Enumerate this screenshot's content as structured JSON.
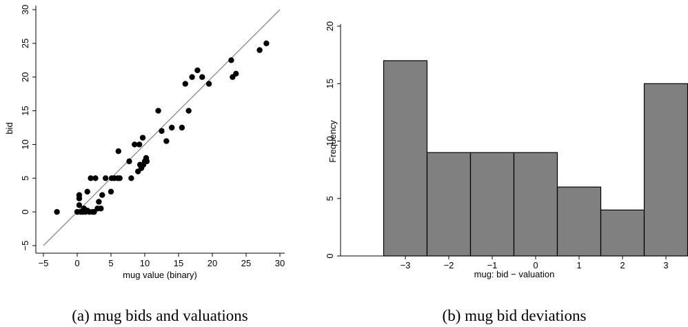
{
  "chart_data": [
    {
      "type": "scatter",
      "caption": "(a) mug bids and valuations",
      "xlabel": "mug value (binary)",
      "ylabel": "bid",
      "xlim": [
        -5,
        30
      ],
      "ylim": [
        -5,
        30
      ],
      "xticks": [
        -5,
        0,
        5,
        10,
        15,
        20,
        25,
        30
      ],
      "yticks": [
        -5,
        0,
        5,
        10,
        15,
        20,
        25,
        30
      ],
      "reference_line": {
        "from": [
          -5,
          -5
        ],
        "to": [
          30,
          30
        ],
        "color": "#8a8a8a"
      },
      "points": [
        [
          -3,
          0
        ],
        [
          0,
          0
        ],
        [
          0.3,
          1
        ],
        [
          0.3,
          2
        ],
        [
          0.3,
          2.5
        ],
        [
          0.5,
          0
        ],
        [
          0.8,
          0
        ],
        [
          1,
          0.5
        ],
        [
          1.2,
          0
        ],
        [
          1.5,
          0.2
        ],
        [
          1.5,
          3
        ],
        [
          1.8,
          0
        ],
        [
          2,
          5
        ],
        [
          2.3,
          0
        ],
        [
          2.5,
          0
        ],
        [
          2.7,
          5
        ],
        [
          3,
          0.5
        ],
        [
          3.2,
          1.5
        ],
        [
          3.5,
          0.5
        ],
        [
          3.7,
          2.5
        ],
        [
          4.2,
          5
        ],
        [
          5,
          3
        ],
        [
          5.1,
          5
        ],
        [
          5.5,
          5
        ],
        [
          6,
          5
        ],
        [
          6.1,
          9
        ],
        [
          6.3,
          5
        ],
        [
          7.7,
          7.5
        ],
        [
          8,
          5
        ],
        [
          8.5,
          10
        ],
        [
          9,
          6
        ],
        [
          9.2,
          10
        ],
        [
          9.3,
          7
        ],
        [
          9.5,
          6.5
        ],
        [
          9.7,
          11
        ],
        [
          9.8,
          7
        ],
        [
          10,
          7.5
        ],
        [
          10.2,
          8
        ],
        [
          10.3,
          7.5
        ],
        [
          12,
          15
        ],
        [
          12.5,
          12
        ],
        [
          13.2,
          10.5
        ],
        [
          14,
          12.5
        ],
        [
          15.5,
          12.5
        ],
        [
          16,
          19
        ],
        [
          16.5,
          15
        ],
        [
          17,
          20
        ],
        [
          17.8,
          21
        ],
        [
          18.5,
          20
        ],
        [
          19.5,
          19
        ],
        [
          22.8,
          22.5
        ],
        [
          23,
          20
        ],
        [
          23.5,
          20.5
        ],
        [
          27,
          24
        ],
        [
          28,
          25
        ]
      ],
      "point_color": "#000000"
    },
    {
      "type": "bar",
      "caption": "(b) mug bid deviations",
      "xlabel": "mug: bid − valuation",
      "ylabel": "Frequency",
      "categories": [
        "−3",
        "−2",
        "−1",
        "0",
        "1",
        "2",
        "3"
      ],
      "centers": [
        -3,
        -2,
        -1,
        0,
        1,
        2,
        3
      ],
      "values": [
        17,
        9,
        9,
        9,
        6,
        4,
        15
      ],
      "ylim": [
        0,
        20
      ],
      "yticks": [
        0,
        5,
        10,
        15,
        20
      ],
      "bar_color": "#808080"
    }
  ]
}
